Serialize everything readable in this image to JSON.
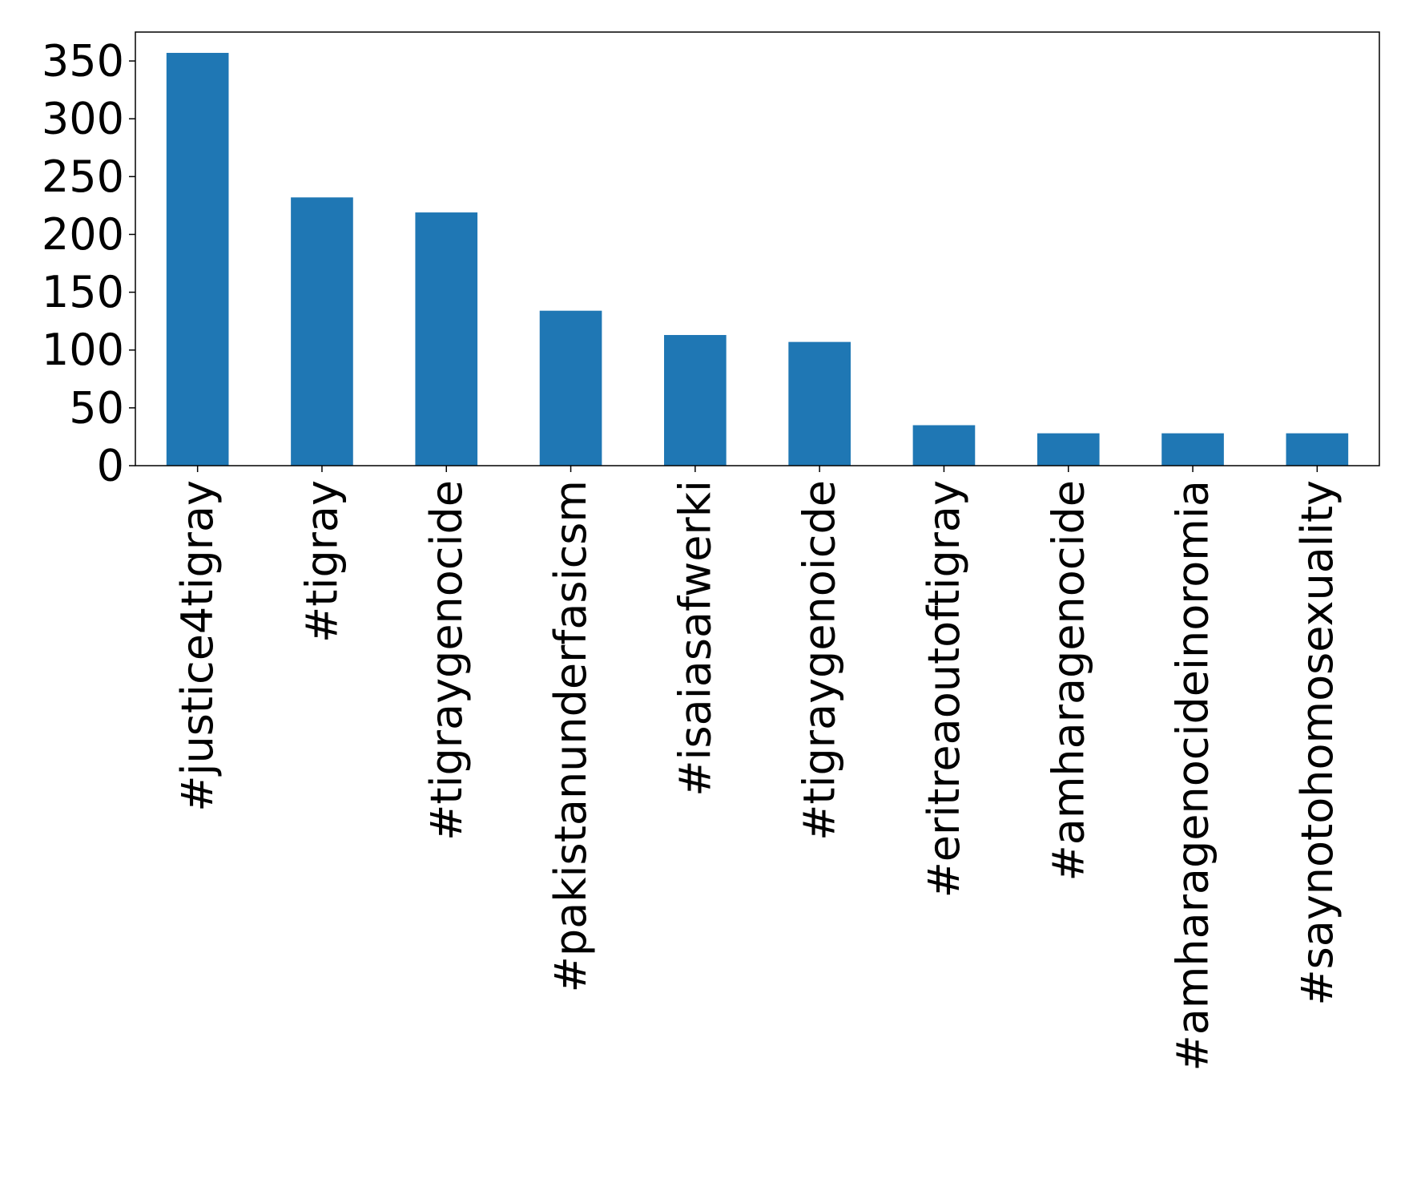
{
  "chart_data": {
    "type": "bar",
    "title": "",
    "xlabel": "",
    "ylabel": "",
    "categories": [
      "#justice4tigray",
      "#tigray",
      "#tigraygenocide",
      "#pakistanunderfasicsm",
      "#isaiasafwerki",
      "#tigraygenoicde",
      "#eritreaoutoftigray",
      "#amharagenocide",
      "#amharagenocideinoromia",
      "#saynotohomosexuality"
    ],
    "values": [
      357,
      232,
      219,
      134,
      113,
      107,
      35,
      28,
      28,
      28
    ],
    "ylim": [
      0,
      375
    ],
    "yticks": [
      0,
      50,
      100,
      150,
      200,
      250,
      300,
      350
    ],
    "grid": false,
    "legend": "none",
    "colors": {
      "bar": "#1f77b4",
      "axis": "#000000",
      "background": "#ffffff"
    }
  }
}
